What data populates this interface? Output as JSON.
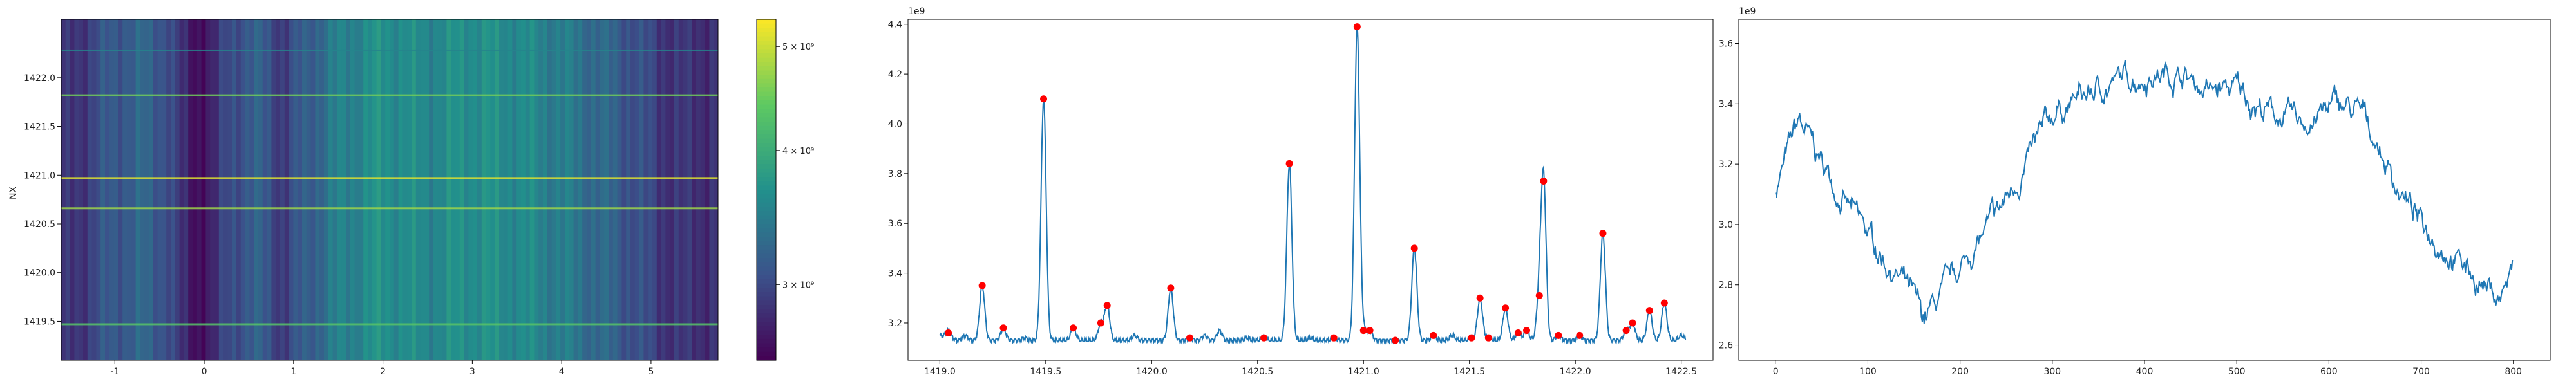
{
  "chart_data": [
    {
      "type": "heatmap",
      "title": "",
      "xlabel": "",
      "ylabel": "NX",
      "xlim": [
        -1.6,
        5.75
      ],
      "ylim": [
        1419.1,
        1422.6
      ],
      "xticks": [
        -1,
        0,
        1,
        2,
        3,
        4,
        5
      ],
      "yticks": [
        1419.5,
        1420.0,
        1420.5,
        1421.0,
        1421.5,
        1422.0
      ],
      "ytick_labels": [
        "1419.5",
        "1420.0",
        "1420.5",
        "1421.0",
        "1421.5",
        "1422.0"
      ],
      "colormap": "viridis",
      "colorbar": {
        "log_scale": true,
        "range": [
          2550000000.0,
          5300000000.0
        ],
        "ticks": [
          3000000000.0,
          4000000000.0,
          5000000000.0
        ],
        "tick_labels": [
          "3 × 10⁹",
          "4 × 10⁹",
          "5 × 10⁹"
        ]
      },
      "column_profile": [
        {
          "x": -1.6,
          "v": 0.12
        },
        {
          "x": -1.3,
          "v": 0.2
        },
        {
          "x": -1.0,
          "v": 0.28
        },
        {
          "x": -0.7,
          "v": 0.32
        },
        {
          "x": -0.4,
          "v": 0.26
        },
        {
          "x": -0.25,
          "v": 0.12
        },
        {
          "x": -0.1,
          "v": 0.05
        },
        {
          "x": 0.1,
          "v": 0.1
        },
        {
          "x": 0.3,
          "v": 0.25
        },
        {
          "x": 0.6,
          "v": 0.3
        },
        {
          "x": 0.9,
          "v": 0.18
        },
        {
          "x": 1.1,
          "v": 0.28
        },
        {
          "x": 1.5,
          "v": 0.42
        },
        {
          "x": 2.0,
          "v": 0.5
        },
        {
          "x": 2.5,
          "v": 0.46
        },
        {
          "x": 3.0,
          "v": 0.5
        },
        {
          "x": 3.5,
          "v": 0.47
        },
        {
          "x": 4.0,
          "v": 0.42
        },
        {
          "x": 4.5,
          "v": 0.32
        },
        {
          "x": 4.8,
          "v": 0.26
        },
        {
          "x": 5.1,
          "v": 0.18
        },
        {
          "x": 5.4,
          "v": 0.14
        },
        {
          "x": 5.75,
          "v": 0.16
        }
      ],
      "bright_rows": [
        {
          "y": 1422.28,
          "v": 0.45
        },
        {
          "y": 1421.82,
          "v": 0.78
        },
        {
          "y": 1420.97,
          "v": 0.95
        },
        {
          "y": 1420.66,
          "v": 0.85
        },
        {
          "y": 1419.47,
          "v": 0.72
        }
      ]
    },
    {
      "type": "line",
      "title": "",
      "xlabel": "",
      "ylabel": "",
      "offset_label": "1e9",
      "xlim": [
        1418.85,
        1422.65
      ],
      "ylim": [
        3.05,
        4.42
      ],
      "xticks": [
        1419.0,
        1419.5,
        1420.0,
        1420.5,
        1421.0,
        1421.5,
        1422.0,
        1422.5
      ],
      "xtick_labels": [
        "1419.0",
        "1419.5",
        "1420.0",
        "1420.5",
        "1421.0",
        "1421.5",
        "1422.0",
        "1422.5"
      ],
      "yticks": [
        3.2,
        3.4,
        3.6,
        3.8,
        4.0,
        4.2,
        4.4
      ],
      "ytick_labels": [
        "3.2",
        "3.4",
        "3.6",
        "3.8",
        "4.0",
        "4.2",
        "4.4"
      ],
      "line_color": "#1f77b4",
      "marker_color": "#ff0000",
      "baseline": 3.13,
      "peaks": [
        {
          "x": 1419.04,
          "y": 3.16
        },
        {
          "x": 1419.2,
          "y": 3.35
        },
        {
          "x": 1419.3,
          "y": 3.18
        },
        {
          "x": 1419.49,
          "y": 4.1
        },
        {
          "x": 1419.63,
          "y": 3.18
        },
        {
          "x": 1419.76,
          "y": 3.2
        },
        {
          "x": 1419.79,
          "y": 3.27
        },
        {
          "x": 1420.09,
          "y": 3.34
        },
        {
          "x": 1420.18,
          "y": 3.14
        },
        {
          "x": 1420.53,
          "y": 3.14
        },
        {
          "x": 1420.65,
          "y": 3.84
        },
        {
          "x": 1420.86,
          "y": 3.14
        },
        {
          "x": 1420.97,
          "y": 4.39
        },
        {
          "x": 1421.0,
          "y": 3.17
        },
        {
          "x": 1421.03,
          "y": 3.17
        },
        {
          "x": 1421.15,
          "y": 3.13
        },
        {
          "x": 1421.24,
          "y": 3.5
        },
        {
          "x": 1421.33,
          "y": 3.15
        },
        {
          "x": 1421.51,
          "y": 3.14
        },
        {
          "x": 1421.55,
          "y": 3.3
        },
        {
          "x": 1421.59,
          "y": 3.14
        },
        {
          "x": 1421.67,
          "y": 3.26
        },
        {
          "x": 1421.73,
          "y": 3.16
        },
        {
          "x": 1421.77,
          "y": 3.17
        },
        {
          "x": 1421.83,
          "y": 3.31
        },
        {
          "x": 1421.85,
          "y": 3.77
        },
        {
          "x": 1421.92,
          "y": 3.15
        },
        {
          "x": 1422.02,
          "y": 3.15
        },
        {
          "x": 1422.13,
          "y": 3.56
        },
        {
          "x": 1422.24,
          "y": 3.17
        },
        {
          "x": 1422.27,
          "y": 3.2
        },
        {
          "x": 1422.35,
          "y": 3.25
        },
        {
          "x": 1422.42,
          "y": 3.28
        }
      ],
      "minor_bumps": [
        {
          "x": 1419.12,
          "y": 3.15
        },
        {
          "x": 1419.4,
          "y": 3.14
        },
        {
          "x": 1419.92,
          "y": 3.15
        },
        {
          "x": 1420.25,
          "y": 3.15
        },
        {
          "x": 1420.32,
          "y": 3.17
        },
        {
          "x": 1420.45,
          "y": 3.14
        },
        {
          "x": 1420.75,
          "y": 3.14
        },
        {
          "x": 1421.42,
          "y": 3.15
        },
        {
          "x": 1422.5,
          "y": 3.15
        }
      ]
    },
    {
      "type": "line",
      "title": "",
      "xlabel": "",
      "ylabel": "",
      "offset_label": "1e9",
      "xlim": [
        -40,
        840
      ],
      "ylim": [
        2.55,
        3.68
      ],
      "xticks": [
        0,
        100,
        200,
        300,
        400,
        500,
        600,
        700,
        800
      ],
      "xtick_labels": [
        "0",
        "100",
        "200",
        "300",
        "400",
        "500",
        "600",
        "700",
        "800"
      ],
      "yticks": [
        2.6,
        2.8,
        3.0,
        3.2,
        3.4,
        3.6
      ],
      "ytick_labels": [
        "2.6",
        "2.8",
        "3.0",
        "3.2",
        "3.4",
        "3.6"
      ],
      "line_color": "#1f77b4",
      "n_points": 800,
      "trend": [
        {
          "x": 0,
          "y": 3.12
        },
        {
          "x": 25,
          "y": 3.34
        },
        {
          "x": 50,
          "y": 3.2
        },
        {
          "x": 80,
          "y": 3.05
        },
        {
          "x": 110,
          "y": 2.92
        },
        {
          "x": 140,
          "y": 2.8
        },
        {
          "x": 160,
          "y": 2.68
        },
        {
          "x": 185,
          "y": 2.78
        },
        {
          "x": 215,
          "y": 2.92
        },
        {
          "x": 245,
          "y": 3.05
        },
        {
          "x": 275,
          "y": 3.22
        },
        {
          "x": 305,
          "y": 3.38
        },
        {
          "x": 340,
          "y": 3.43
        },
        {
          "x": 375,
          "y": 3.48
        },
        {
          "x": 405,
          "y": 3.5
        },
        {
          "x": 440,
          "y": 3.5
        },
        {
          "x": 470,
          "y": 3.44
        },
        {
          "x": 500,
          "y": 3.45
        },
        {
          "x": 530,
          "y": 3.38
        },
        {
          "x": 570,
          "y": 3.33
        },
        {
          "x": 610,
          "y": 3.4
        },
        {
          "x": 640,
          "y": 3.35
        },
        {
          "x": 670,
          "y": 3.15
        },
        {
          "x": 700,
          "y": 3.0
        },
        {
          "x": 730,
          "y": 2.92
        },
        {
          "x": 760,
          "y": 2.82
        },
        {
          "x": 785,
          "y": 2.76
        },
        {
          "x": 800,
          "y": 2.85
        }
      ]
    }
  ]
}
